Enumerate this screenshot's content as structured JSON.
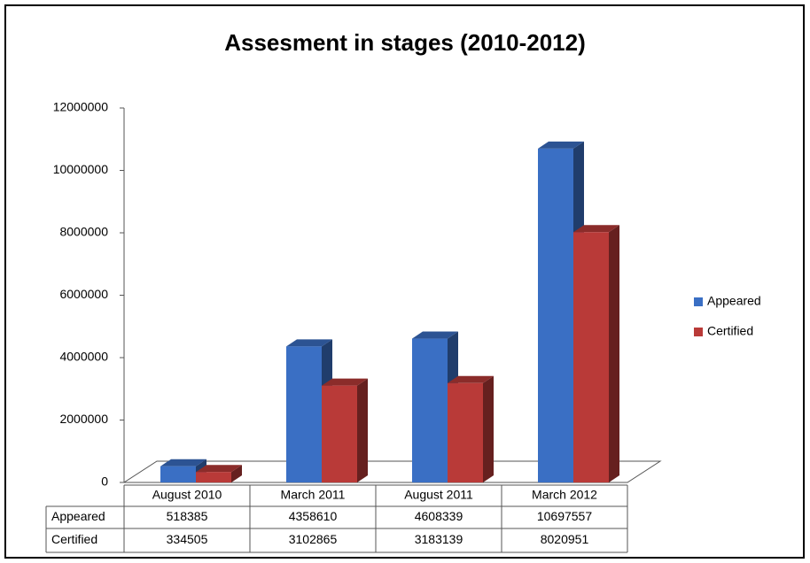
{
  "chart_data": {
    "type": "bar3d",
    "title": "Assesment in stages (2010-2012)",
    "categories": [
      "August 2010",
      "March 2011",
      "August 2011",
      "March 2012"
    ],
    "series": [
      {
        "name": "Appeared",
        "color": "#3a6fc4",
        "values": [
          518385,
          4358610,
          4608339,
          10697557
        ]
      },
      {
        "name": "Certified",
        "color": "#b93a38",
        "values": [
          334505,
          3102865,
          3183139,
          8020951
        ]
      }
    ],
    "ylim": [
      0,
      12000000
    ],
    "yticks": [
      0,
      2000000,
      4000000,
      6000000,
      8000000,
      10000000,
      12000000
    ],
    "legend": "right",
    "data_table": true
  }
}
